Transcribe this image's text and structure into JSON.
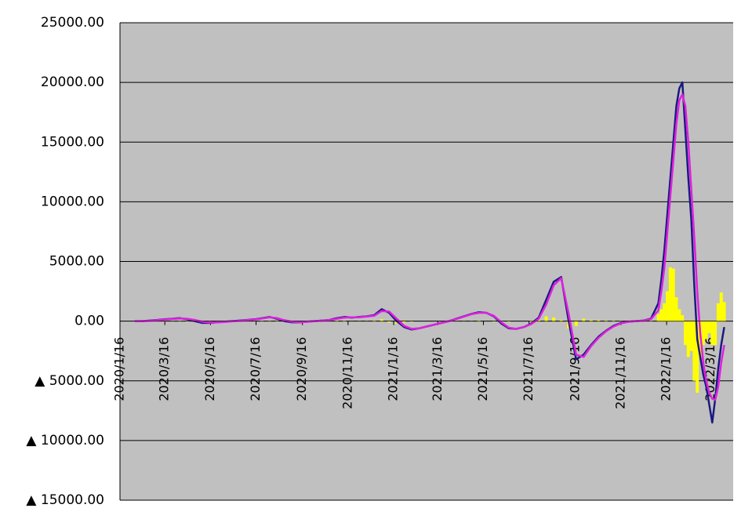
{
  "chart_data": {
    "type": "line",
    "x": [
      20,
      30,
      40,
      50,
      60,
      70,
      80,
      90,
      100,
      110,
      120,
      130,
      140,
      150,
      160,
      170,
      180,
      190,
      200,
      210,
      220,
      230,
      240,
      250,
      260,
      270,
      280,
      290,
      300,
      310,
      320,
      330,
      340,
      350,
      360,
      370,
      380,
      390,
      400,
      410,
      420,
      430,
      440,
      450,
      460,
      470,
      480,
      490,
      500,
      510,
      520,
      530,
      540,
      550,
      560,
      570,
      580,
      590,
      600,
      610,
      620,
      630,
      640,
      650,
      660,
      670,
      680,
      690,
      700,
      710,
      720,
      724,
      728,
      732,
      736,
      740,
      744,
      748,
      752,
      756,
      760,
      764,
      768,
      772,
      776,
      780,
      784,
      788,
      792,
      796,
      800,
      804,
      808
    ],
    "series": [
      {
        "kind": "bar",
        "color": "#ffff00",
        "values": [
          0,
          0,
          20,
          20,
          20,
          20,
          30,
          -50,
          -100,
          -100,
          -30,
          10,
          20,
          20,
          20,
          20,
          20,
          30,
          30,
          -50,
          -80,
          -50,
          -10,
          10,
          10,
          10,
          10,
          50,
          50,
          -20,
          20,
          20,
          50,
          150,
          -100,
          -200,
          -100,
          -50,
          0,
          0,
          0,
          0,
          0,
          20,
          20,
          20,
          50,
          0,
          -50,
          -100,
          -50,
          0,
          0,
          50,
          100,
          400,
          300,
          100,
          -600,
          -400,
          200,
          100,
          100,
          50,
          50,
          30,
          10,
          0,
          10,
          50,
          600,
          1000,
          1500,
          2500,
          4500,
          4400,
          2000,
          1000,
          500,
          -2000,
          -3000,
          -2500,
          -5000,
          -6000,
          -3000,
          -2000,
          -1500,
          -1000,
          -2000,
          -2000,
          1500,
          2400,
          1600
        ]
      },
      {
        "kind": "line",
        "color": "#1a1a80",
        "values": [
          0,
          0,
          50,
          100,
          150,
          200,
          250,
          150,
          0,
          -150,
          -150,
          -100,
          -50,
          0,
          50,
          100,
          150,
          250,
          350,
          200,
          0,
          -100,
          -100,
          -50,
          0,
          50,
          100,
          250,
          350,
          300,
          350,
          400,
          500,
          1000,
          700,
          0,
          -500,
          -700,
          -600,
          -450,
          -300,
          -150,
          0,
          200,
          400,
          600,
          750,
          700,
          400,
          -200,
          -600,
          -650,
          -500,
          -200,
          300,
          1800,
          3300,
          3700,
          0,
          -3200,
          -2800,
          -2000,
          -1300,
          -800,
          -400,
          -150,
          -50,
          0,
          50,
          200,
          1500,
          3500,
          6000,
          9000,
          12000,
          15000,
          18000,
          19500,
          20000,
          16000,
          12000,
          8500,
          3000,
          -1500,
          -3000,
          -4500,
          -5500,
          -7000,
          -8500,
          -6500,
          -4000,
          -2000,
          -500
        ]
      },
      {
        "kind": "line",
        "color": "#e020e0",
        "values": [
          0,
          0,
          30,
          80,
          130,
          180,
          220,
          200,
          100,
          -50,
          -120,
          -110,
          -70,
          -20,
          30,
          80,
          130,
          220,
          320,
          250,
          80,
          -50,
          -90,
          -60,
          -10,
          40,
          90,
          200,
          300,
          320,
          330,
          380,
          450,
          850,
          800,
          200,
          -400,
          -650,
          -600,
          -450,
          -300,
          -150,
          0,
          180,
          380,
          580,
          700,
          700,
          450,
          -100,
          -550,
          -650,
          -500,
          -250,
          200,
          1400,
          3000,
          3600,
          600,
          -2800,
          -3000,
          -2100,
          -1400,
          -850,
          -450,
          -180,
          -60,
          0,
          40,
          150,
          900,
          2500,
          4500,
          7500,
          10500,
          13500,
          16500,
          18500,
          19000,
          18000,
          15000,
          11000,
          7000,
          2500,
          -1000,
          -3500,
          -5000,
          -6000,
          -6500,
          -6600,
          -5500,
          -3500,
          -2000
        ]
      }
    ],
    "xlim": [
      0,
      820
    ],
    "xticks": [
      {
        "value": 0,
        "label": "2020/1/16"
      },
      {
        "value": 60,
        "label": "2020/3/16"
      },
      {
        "value": 121,
        "label": "2020/5/16"
      },
      {
        "value": 182,
        "label": "2020/7/16"
      },
      {
        "value": 244,
        "label": "2020/9/16"
      },
      {
        "value": 305,
        "label": "2020/11/16"
      },
      {
        "value": 366,
        "label": "2021/1/16"
      },
      {
        "value": 425,
        "label": "2021/3/16"
      },
      {
        "value": 486,
        "label": "2021/5/16"
      },
      {
        "value": 547,
        "label": "2021/7/16"
      },
      {
        "value": 609,
        "label": "2021/9/16"
      },
      {
        "value": 670,
        "label": "2021/11/16"
      },
      {
        "value": 731,
        "label": "2022/1/16"
      },
      {
        "value": 790,
        "label": "2022/3/16"
      }
    ],
    "ylim": [
      -15000,
      25000
    ],
    "yticks": [
      {
        "value": 25000,
        "label": "25000.00"
      },
      {
        "value": 20000,
        "label": "20000.00"
      },
      {
        "value": 15000,
        "label": "15000.00"
      },
      {
        "value": 10000,
        "label": "10000.00"
      },
      {
        "value": 5000,
        "label": "5000.00"
      },
      {
        "value": 0,
        "label": "0.00"
      },
      {
        "value": -5000,
        "label": "▲ 5000.00"
      },
      {
        "value": -10000,
        "label": "▲ 10000.00"
      },
      {
        "value": -15000,
        "label": "▲ 15000.00"
      }
    ],
    "grid": true,
    "background": "#c0c0c0"
  }
}
